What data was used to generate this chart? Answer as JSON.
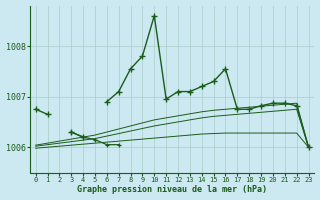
{
  "title": "Graphe pression niveau de la mer (hPa)",
  "background_color": "#cce8f0",
  "grid_color": "#aacccc",
  "line_color": "#1a5c1a",
  "x_labels": [
    "0",
    "1",
    "2",
    "3",
    "4",
    "5",
    "6",
    "7",
    "8",
    "9",
    "10",
    "11",
    "12",
    "13",
    "14",
    "15",
    "16",
    "17",
    "18",
    "19",
    "20",
    "21",
    "22",
    "23"
  ],
  "ylim": [
    1005.5,
    1008.8
  ],
  "yticks": [
    1006,
    1007,
    1008
  ],
  "main_series": [
    1006.75,
    1006.65,
    null,
    1006.3,
    1006.2,
    null,
    1006.9,
    1007.1,
    1007.55,
    1007.8,
    1008.6,
    1006.95,
    1007.1,
    1007.1,
    1007.2,
    1007.3,
    1007.55,
    1006.75,
    1006.75,
    1006.82,
    1006.87,
    1006.87,
    1006.82,
    1006.0
  ],
  "smooth1": [
    1006.04,
    1006.08,
    1006.12,
    1006.16,
    1006.2,
    1006.24,
    1006.3,
    1006.36,
    1006.42,
    1006.48,
    1006.54,
    1006.58,
    1006.62,
    1006.66,
    1006.7,
    1006.73,
    1006.75,
    1006.77,
    1006.79,
    1006.81,
    1006.83,
    1006.85,
    1006.87,
    1006.0
  ],
  "smooth2": [
    1006.02,
    1006.05,
    1006.08,
    1006.11,
    1006.14,
    1006.17,
    1006.22,
    1006.27,
    1006.32,
    1006.37,
    1006.42,
    1006.46,
    1006.5,
    1006.54,
    1006.58,
    1006.61,
    1006.63,
    1006.65,
    1006.67,
    1006.69,
    1006.71,
    1006.73,
    1006.75,
    1006.0
  ],
  "smooth3": [
    1005.98,
    1006.0,
    1006.02,
    1006.04,
    1006.06,
    1006.08,
    1006.1,
    1006.12,
    1006.14,
    1006.16,
    1006.18,
    1006.2,
    1006.22,
    1006.24,
    1006.26,
    1006.27,
    1006.28,
    1006.28,
    1006.28,
    1006.28,
    1006.28,
    1006.28,
    1006.28,
    1006.0
  ],
  "line2_x": [
    3,
    4,
    5,
    6,
    7
  ],
  "line2_y": [
    1006.3,
    1006.2,
    1006.15,
    1006.05,
    1006.05
  ]
}
